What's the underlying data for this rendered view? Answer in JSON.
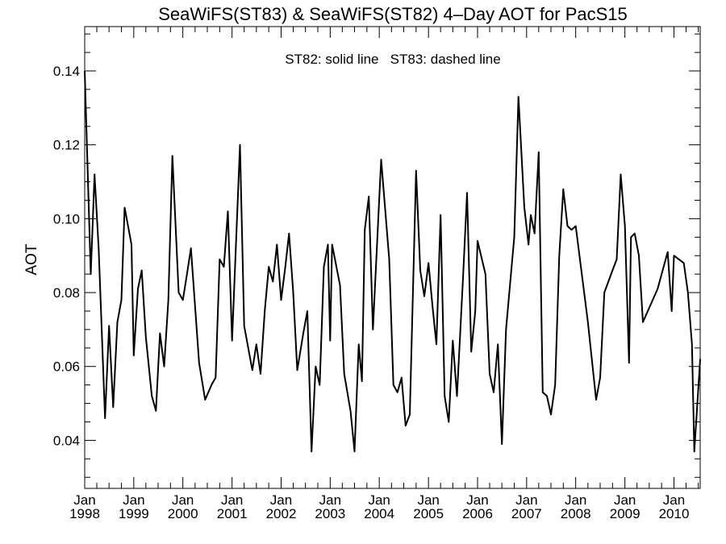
{
  "chart_data": {
    "type": "line",
    "title": "SeaWiFS(ST83) & SeaWiFS(ST82) 4–Day AOT for PacS15",
    "annotation": "ST82: solid line   ST83: dashed line",
    "xlabel": "",
    "ylabel": "AOT",
    "xlim": [
      "1998-01-01",
      "2010-07-15"
    ],
    "ylim": [
      0.027,
      0.152
    ],
    "grid": false,
    "y_ticks": [
      0.04,
      0.06,
      0.08,
      0.1,
      0.12,
      0.14
    ],
    "y_tick_labels": [
      "0.04",
      "0.06",
      "0.08",
      "0.10",
      "0.12",
      "0.14"
    ],
    "x_ticks": [
      {
        "date": "1998-01-01",
        "month": "Jan",
        "year": "1998"
      },
      {
        "date": "1999-01-01",
        "month": "Jan",
        "year": "1999"
      },
      {
        "date": "2000-01-01",
        "month": "Jan",
        "year": "2000"
      },
      {
        "date": "2001-01-01",
        "month": "Jan",
        "year": "2001"
      },
      {
        "date": "2002-01-01",
        "month": "Jan",
        "year": "2002"
      },
      {
        "date": "2003-01-01",
        "month": "Jan",
        "year": "2003"
      },
      {
        "date": "2004-01-01",
        "month": "Jan",
        "year": "2004"
      },
      {
        "date": "2005-01-01",
        "month": "Jan",
        "year": "2005"
      },
      {
        "date": "2006-01-01",
        "month": "Jan",
        "year": "2006"
      },
      {
        "date": "2007-01-01",
        "month": "Jan",
        "year": "2007"
      },
      {
        "date": "2008-01-01",
        "month": "Jan",
        "year": "2008"
      },
      {
        "date": "2009-01-01",
        "month": "Jan",
        "year": "2009"
      },
      {
        "date": "2010-01-01",
        "month": "Jan",
        "year": "2010"
      }
    ],
    "series": [
      {
        "name": "ST82",
        "style": "solid",
        "color": "#000000",
        "points": [
          [
            "1998-01-01",
            0.14
          ],
          [
            "1998-02-15",
            0.085
          ],
          [
            "1998-03-15",
            0.112
          ],
          [
            "1998-04-15",
            0.092
          ],
          [
            "1998-06-01",
            0.046
          ],
          [
            "1998-07-01",
            0.071
          ],
          [
            "1998-08-01",
            0.049
          ],
          [
            "1998-09-01",
            0.072
          ],
          [
            "1998-10-01",
            0.078
          ],
          [
            "1998-10-25",
            0.103
          ],
          [
            "1998-12-15",
            0.093
          ],
          [
            "1999-01-01",
            0.063
          ],
          [
            "1999-02-01",
            0.081
          ],
          [
            "1999-03-01",
            0.086
          ],
          [
            "1999-04-01",
            0.068
          ],
          [
            "1999-05-15",
            0.052
          ],
          [
            "1999-06-15",
            0.048
          ],
          [
            "1999-07-15",
            0.069
          ],
          [
            "1999-08-15",
            0.06
          ],
          [
            "1999-09-15",
            0.078
          ],
          [
            "1999-10-15",
            0.117
          ],
          [
            "1999-12-01",
            0.08
          ],
          [
            "2000-01-01",
            0.078
          ],
          [
            "2000-02-01",
            0.085
          ],
          [
            "2000-03-01",
            0.092
          ],
          [
            "2000-05-01",
            0.061
          ],
          [
            "2000-06-15",
            0.051
          ],
          [
            "2000-08-01",
            0.055
          ],
          [
            "2000-09-01",
            0.057
          ],
          [
            "2000-10-01",
            0.089
          ],
          [
            "2000-11-01",
            0.087
          ],
          [
            "2000-12-01",
            0.102
          ],
          [
            "2001-01-01",
            0.067
          ],
          [
            "2001-03-01",
            0.12
          ],
          [
            "2001-04-01",
            0.071
          ],
          [
            "2001-06-01",
            0.059
          ],
          [
            "2001-07-01",
            0.066
          ],
          [
            "2001-08-01",
            0.058
          ],
          [
            "2001-09-01",
            0.075
          ],
          [
            "2001-10-01",
            0.087
          ],
          [
            "2001-11-01",
            0.083
          ],
          [
            "2001-12-01",
            0.093
          ],
          [
            "2002-01-01",
            0.078
          ],
          [
            "2002-02-01",
            0.087
          ],
          [
            "2002-03-01",
            0.096
          ],
          [
            "2002-04-01",
            0.08
          ],
          [
            "2002-05-01",
            0.059
          ],
          [
            "2002-06-15",
            0.069
          ],
          [
            "2002-07-15",
            0.075
          ],
          [
            "2002-08-15",
            0.037
          ],
          [
            "2002-09-15",
            0.06
          ],
          [
            "2002-10-15",
            0.055
          ],
          [
            "2002-11-15",
            0.087
          ],
          [
            "2002-12-15",
            0.093
          ],
          [
            "2003-01-01",
            0.067
          ],
          [
            "2003-01-15",
            0.093
          ],
          [
            "2003-03-15",
            0.082
          ],
          [
            "2003-04-15",
            0.058
          ],
          [
            "2003-06-01",
            0.048
          ],
          [
            "2003-07-01",
            0.037
          ],
          [
            "2003-08-01",
            0.066
          ],
          [
            "2003-08-25",
            0.056
          ],
          [
            "2003-09-15",
            0.097
          ],
          [
            "2003-10-15",
            0.106
          ],
          [
            "2003-11-15",
            0.07
          ],
          [
            "2004-01-15",
            0.116
          ],
          [
            "2004-03-15",
            0.089
          ],
          [
            "2004-04-15",
            0.055
          ],
          [
            "2004-05-15",
            0.053
          ],
          [
            "2004-06-15",
            0.057
          ],
          [
            "2004-07-15",
            0.044
          ],
          [
            "2004-08-15",
            0.047
          ],
          [
            "2004-10-01",
            0.113
          ],
          [
            "2004-11-01",
            0.086
          ],
          [
            "2004-12-01",
            0.079
          ],
          [
            "2005-01-01",
            0.088
          ],
          [
            "2005-02-01",
            0.076
          ],
          [
            "2005-03-01",
            0.066
          ],
          [
            "2005-04-01",
            0.101
          ],
          [
            "2005-05-01",
            0.052
          ],
          [
            "2005-06-01",
            0.045
          ],
          [
            "2005-07-01",
            0.067
          ],
          [
            "2005-08-01",
            0.052
          ],
          [
            "2005-09-15",
            0.084
          ],
          [
            "2005-10-15",
            0.107
          ],
          [
            "2005-11-15",
            0.064
          ],
          [
            "2005-12-15",
            0.075
          ],
          [
            "2006-01-01",
            0.094
          ],
          [
            "2006-03-01",
            0.085
          ],
          [
            "2006-04-01",
            0.058
          ],
          [
            "2006-05-01",
            0.053
          ],
          [
            "2006-06-01",
            0.066
          ],
          [
            "2006-07-01",
            0.039
          ],
          [
            "2006-08-01",
            0.07
          ],
          [
            "2006-10-01",
            0.095
          ],
          [
            "2006-11-01",
            0.133
          ],
          [
            "2006-12-15",
            0.103
          ],
          [
            "2007-01-15",
            0.093
          ],
          [
            "2007-02-01",
            0.101
          ],
          [
            "2007-03-01",
            0.096
          ],
          [
            "2007-04-01",
            0.118
          ],
          [
            "2007-05-01",
            0.053
          ],
          [
            "2007-06-01",
            0.052
          ],
          [
            "2007-07-01",
            0.047
          ],
          [
            "2007-08-01",
            0.055
          ],
          [
            "2007-09-01",
            0.09
          ],
          [
            "2007-10-01",
            0.108
          ],
          [
            "2007-11-01",
            0.098
          ],
          [
            "2007-12-01",
            0.097
          ],
          [
            "2008-01-01",
            0.098
          ],
          [
            "2008-04-01",
            0.072
          ],
          [
            "2008-06-01",
            0.051
          ],
          [
            "2008-07-01",
            0.057
          ],
          [
            "2008-08-01",
            0.08
          ],
          [
            "2008-10-01",
            0.086
          ],
          [
            "2008-11-01",
            0.089
          ],
          [
            "2008-12-01",
            0.112
          ],
          [
            "2009-01-01",
            0.098
          ],
          [
            "2009-02-01",
            0.061
          ],
          [
            "2009-02-15",
            0.095
          ],
          [
            "2009-03-15",
            0.096
          ],
          [
            "2009-04-15",
            0.09
          ],
          [
            "2009-05-15",
            0.072
          ],
          [
            "2009-09-01",
            0.081
          ],
          [
            "2009-11-15",
            0.091
          ],
          [
            "2009-12-15",
            0.075
          ],
          [
            "2010-01-01",
            0.09
          ],
          [
            "2010-03-15",
            0.088
          ],
          [
            "2010-04-15",
            0.08
          ],
          [
            "2010-05-15",
            0.066
          ],
          [
            "2010-06-01",
            0.037
          ],
          [
            "2010-07-15",
            0.062
          ]
        ]
      }
    ]
  }
}
